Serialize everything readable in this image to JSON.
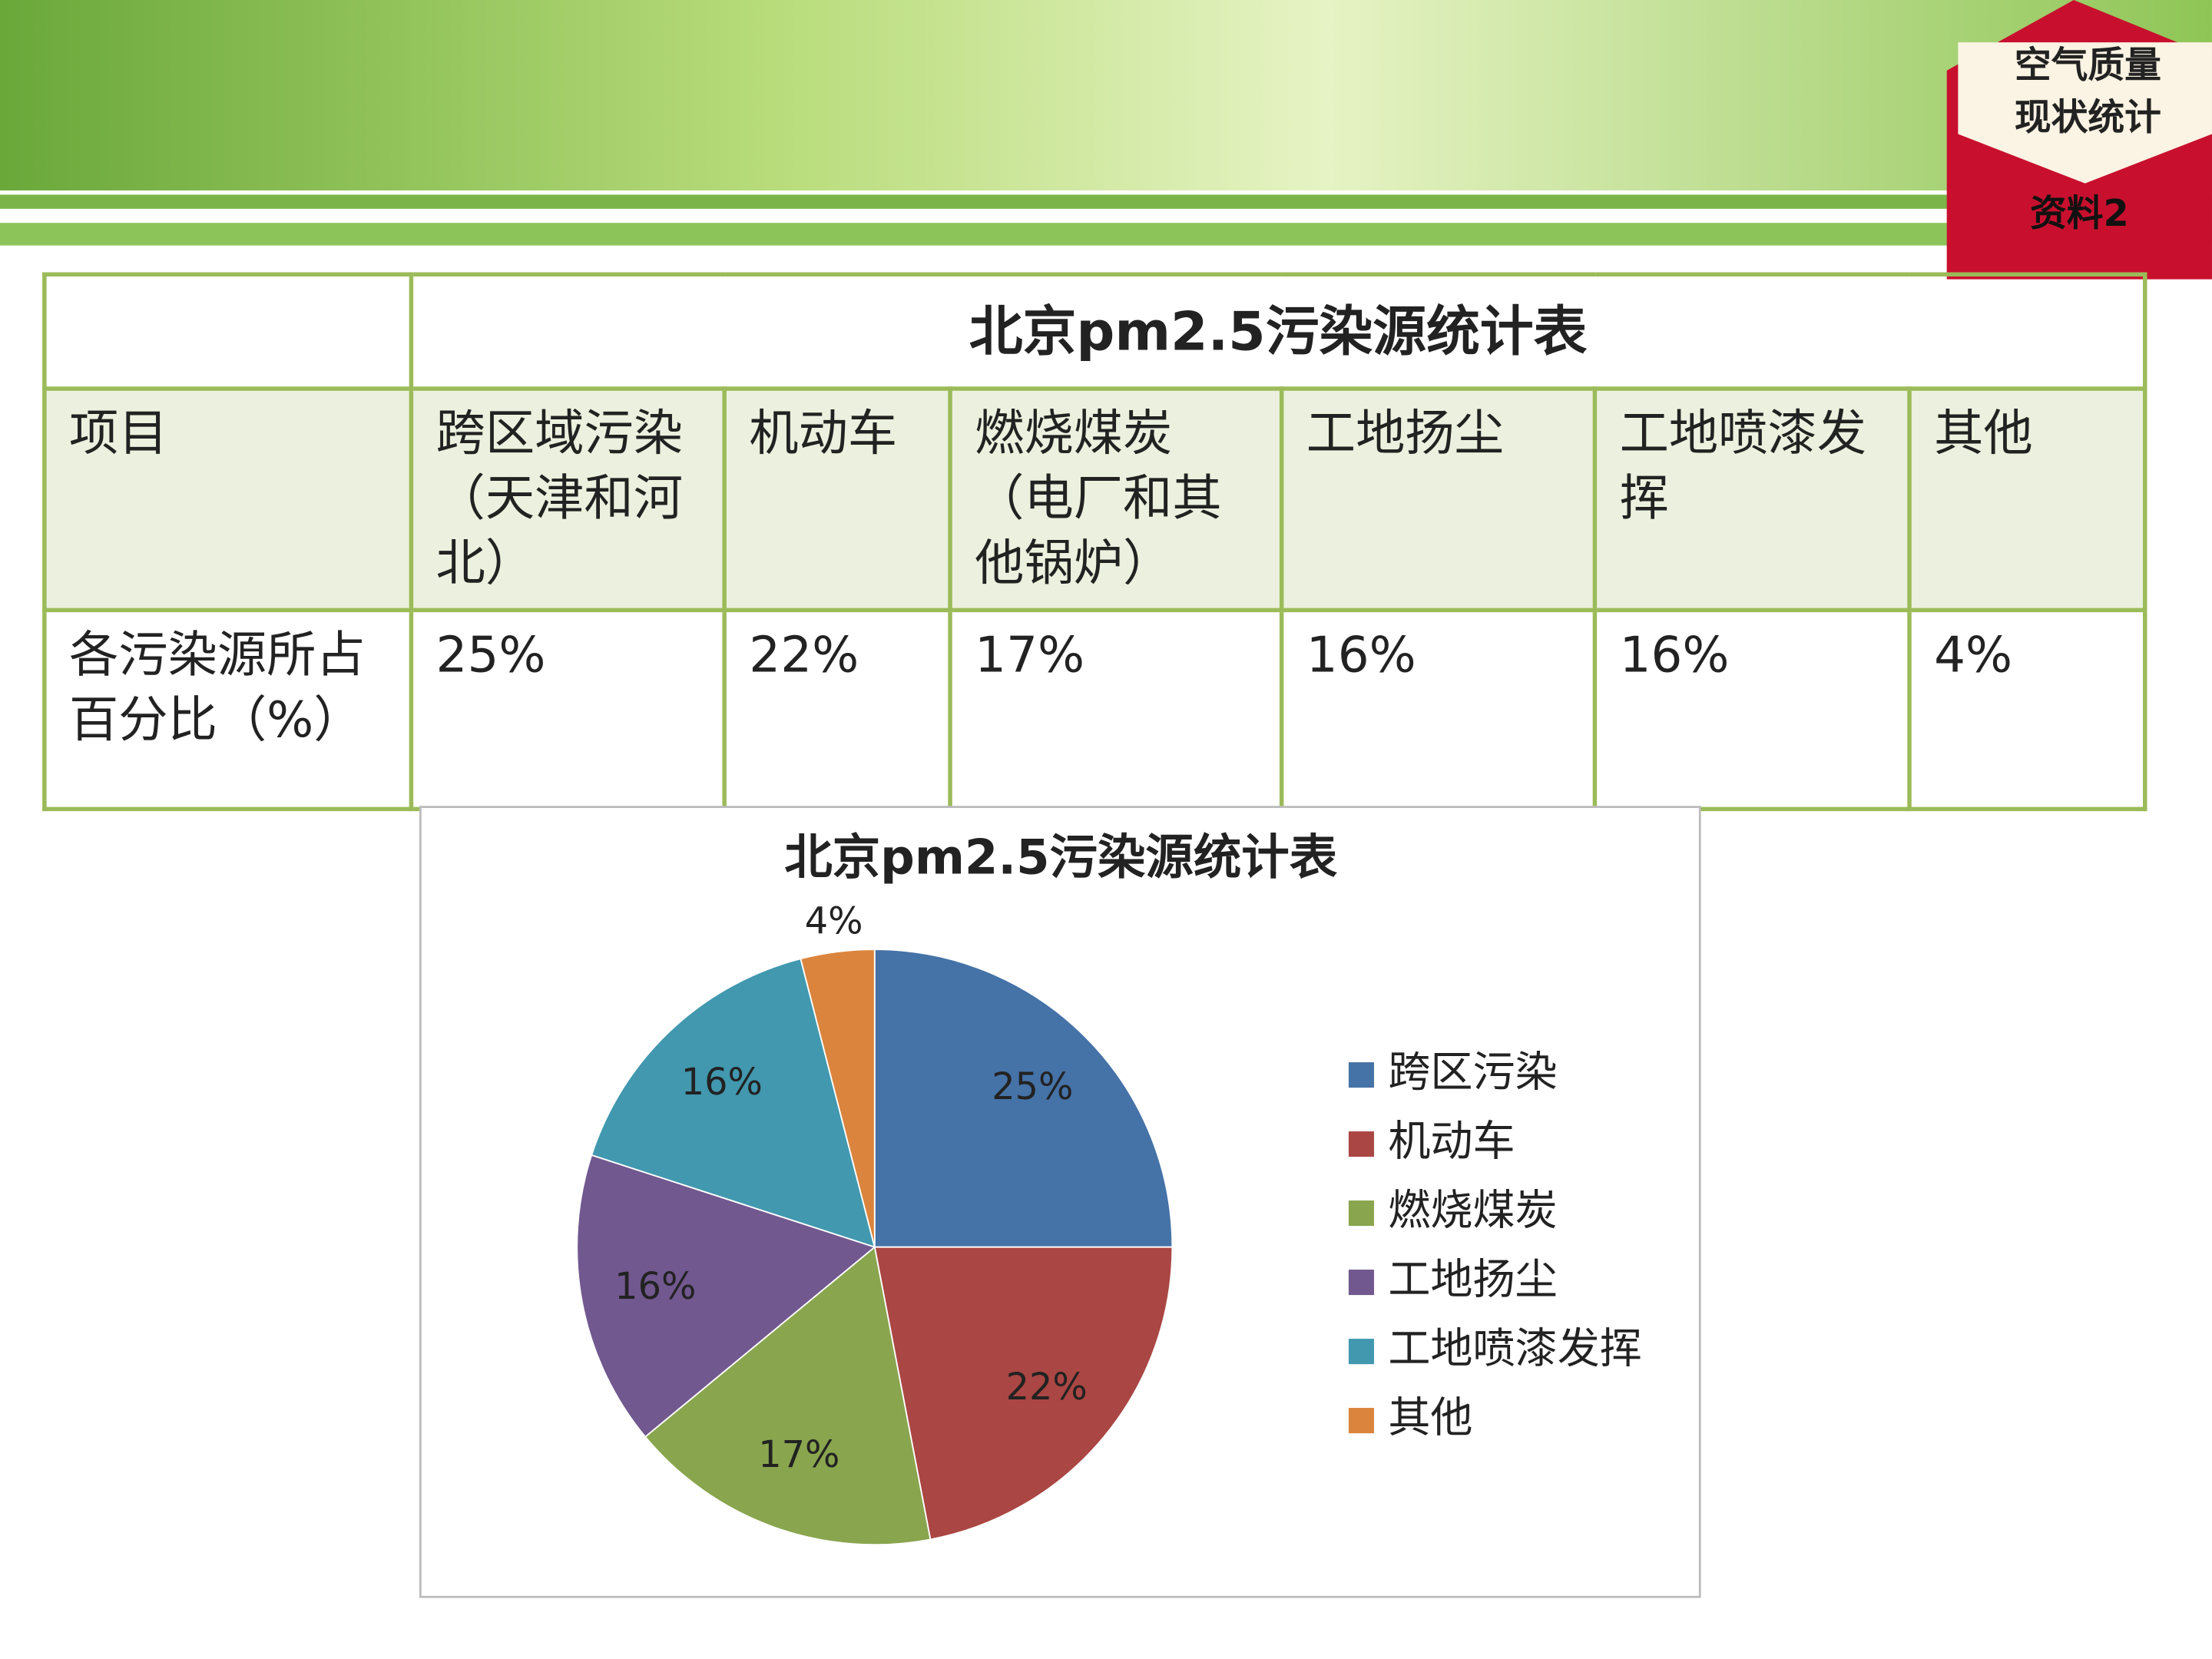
{
  "badge": {
    "lines": [
      "空气质量",
      "现状统计"
    ],
    "label": "资料2"
  },
  "table": {
    "title": "北京pm2.5污染源统计表",
    "header": [
      "项目",
      "跨区域污染（天津和河北）",
      "机动车",
      "燃烧煤炭（电厂和其他锅炉）",
      "工地扬尘",
      "工地喷漆发挥",
      "其他"
    ],
    "rows": [
      [
        "各污染源所占百分比（%）",
        "25%",
        "22%",
        "17%",
        "16%",
        "16%",
        "4%"
      ]
    ]
  },
  "chart_data": {
    "type": "pie",
    "title": "北京pm2.5污染源统计表",
    "categories": [
      "跨区污染",
      "机动车",
      "燃烧煤炭",
      "工地扬尘",
      "工地喷漆发挥",
      "其他"
    ],
    "values": [
      25,
      22,
      17,
      16,
      16,
      4
    ],
    "value_labels": [
      "25%",
      "22%",
      "17%",
      "16%",
      "16%",
      "4%"
    ],
    "colors": [
      "#4572a7",
      "#aa4643",
      "#89a54e",
      "#71588f",
      "#4198af",
      "#db843d"
    ],
    "legend": "right"
  }
}
